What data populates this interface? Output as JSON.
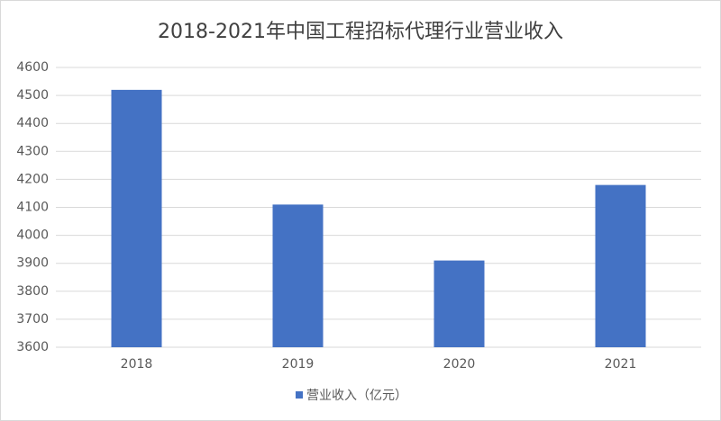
{
  "chart_data": {
    "type": "bar",
    "title": "2018-2021年中国工程招标代理行业营业收入",
    "categories": [
      "2018",
      "2019",
      "2020",
      "2021"
    ],
    "series": [
      {
        "name": "营业收入（亿元）",
        "color": "#4472c4",
        "values": [
          4520,
          4110,
          3910,
          4180
        ]
      }
    ],
    "ylim": [
      3600,
      4600
    ],
    "yticks": [
      3600,
      3700,
      3800,
      3900,
      4000,
      4100,
      4200,
      4300,
      4400,
      4500,
      4600
    ],
    "grid": true,
    "legend": "bottom"
  }
}
